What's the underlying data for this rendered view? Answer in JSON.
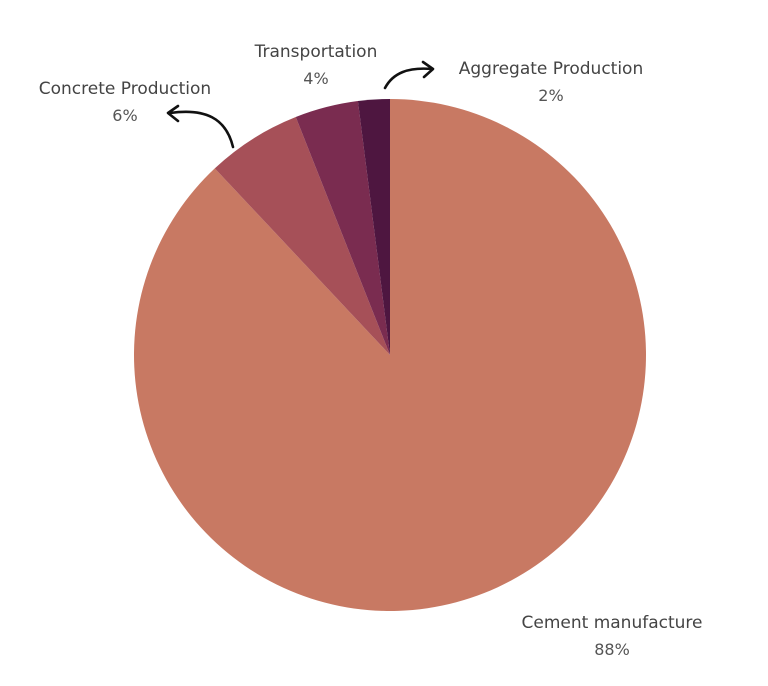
{
  "chart_data": {
    "type": "pie",
    "title": "",
    "start_angle_deg": 0,
    "direction": "clockwise",
    "slices": [
      {
        "label": "Cement manufacture",
        "value": 88,
        "value_label": "88%",
        "color": "#C87963"
      },
      {
        "label": "Concrete Production",
        "value": 6,
        "value_label": "6%",
        "color": "#A65058"
      },
      {
        "label": "Transportation",
        "value": 4,
        "value_label": "4%",
        "color": "#7A2C50"
      },
      {
        "label": "Aggregate Production",
        "value": 2,
        "value_label": "2%",
        "color": "#4E1640"
      }
    ],
    "legend": "none"
  }
}
